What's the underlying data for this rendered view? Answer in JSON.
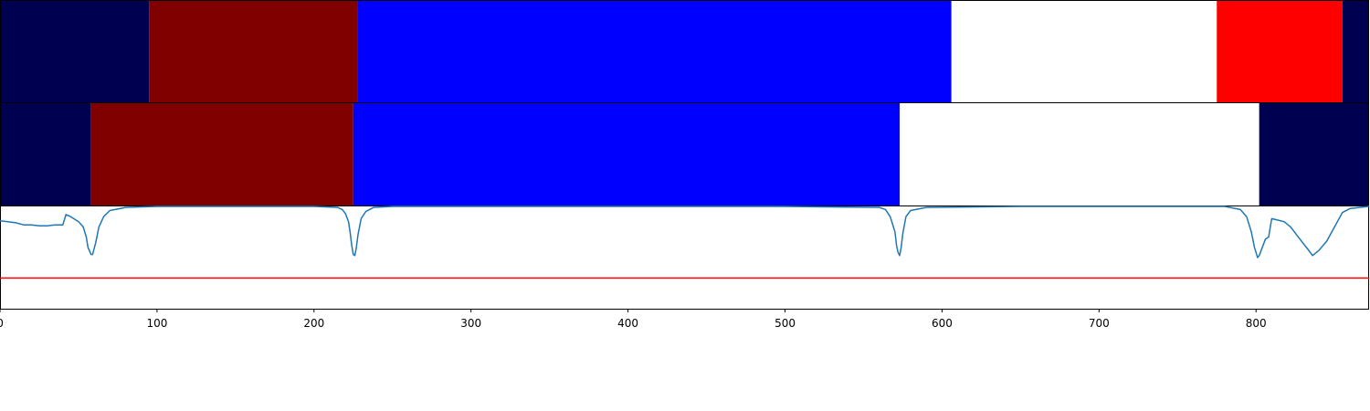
{
  "chart_data": [
    {
      "type": "segment_bar",
      "row": "top",
      "xlim": [
        0,
        872
      ],
      "colors": {
        "navy": "#000050",
        "maroon": "#800000",
        "blue": "#0000ff",
        "white": "#ffffff",
        "red": "#ff0000"
      },
      "segments": [
        {
          "start": 0,
          "end": 95,
          "color": "navy"
        },
        {
          "start": 95,
          "end": 228,
          "color": "maroon"
        },
        {
          "start": 228,
          "end": 606,
          "color": "blue"
        },
        {
          "start": 606,
          "end": 775,
          "color": "white"
        },
        {
          "start": 775,
          "end": 855,
          "color": "red"
        },
        {
          "start": 855,
          "end": 872,
          "color": "navy"
        }
      ]
    },
    {
      "type": "segment_bar",
      "row": "middle",
      "xlim": [
        0,
        872
      ],
      "colors": {
        "navy": "#000050",
        "maroon": "#800000",
        "blue": "#0000ff",
        "white": "#ffffff"
      },
      "segments": [
        {
          "start": 0,
          "end": 58,
          "color": "navy"
        },
        {
          "start": 58,
          "end": 225,
          "color": "maroon"
        },
        {
          "start": 225,
          "end": 573,
          "color": "blue"
        },
        {
          "start": 573,
          "end": 802,
          "color": "white"
        },
        {
          "start": 802,
          "end": 872,
          "color": "navy"
        }
      ]
    },
    {
      "type": "line",
      "row": "bottom",
      "xlim": [
        0,
        872
      ],
      "ylim": [
        0,
        1
      ],
      "threshold": 0.3,
      "line_color": "#1f77b4",
      "threshold_color": "#ff0000",
      "x": [
        0,
        5,
        10,
        15,
        20,
        25,
        30,
        35,
        40,
        42,
        45,
        50,
        53,
        55,
        56,
        58,
        59,
        61,
        63,
        66,
        70,
        80,
        100,
        150,
        200,
        215,
        218,
        220,
        222,
        223,
        224,
        225,
        226,
        227,
        228,
        230,
        233,
        238,
        250,
        300,
        400,
        500,
        560,
        564,
        567,
        570,
        571,
        572,
        573,
        574,
        575,
        577,
        580,
        590,
        650,
        700,
        780,
        790,
        794,
        797,
        799,
        801,
        802,
        804,
        806,
        808,
        810,
        813,
        818,
        822,
        826,
        830,
        833,
        836,
        840,
        845,
        850,
        855,
        860,
        872
      ],
      "y": [
        0.86,
        0.85,
        0.84,
        0.82,
        0.82,
        0.81,
        0.81,
        0.82,
        0.82,
        0.92,
        0.9,
        0.85,
        0.8,
        0.7,
        0.6,
        0.53,
        0.53,
        0.65,
        0.8,
        0.9,
        0.96,
        0.99,
        1.0,
        1.0,
        1.0,
        0.99,
        0.97,
        0.93,
        0.85,
        0.75,
        0.62,
        0.53,
        0.52,
        0.6,
        0.72,
        0.88,
        0.95,
        0.99,
        1.0,
        1.0,
        1.0,
        1.0,
        0.99,
        0.97,
        0.9,
        0.75,
        0.62,
        0.55,
        0.52,
        0.6,
        0.73,
        0.9,
        0.96,
        0.99,
        1.0,
        1.0,
        1.0,
        0.97,
        0.9,
        0.75,
        0.6,
        0.5,
        0.52,
        0.6,
        0.68,
        0.7,
        0.88,
        0.87,
        0.85,
        0.8,
        0.72,
        0.64,
        0.58,
        0.52,
        0.57,
        0.66,
        0.8,
        0.94,
        0.98,
        1.0
      ]
    }
  ],
  "x_ticks": [
    0,
    100,
    200,
    300,
    400,
    500,
    600,
    700,
    800
  ]
}
